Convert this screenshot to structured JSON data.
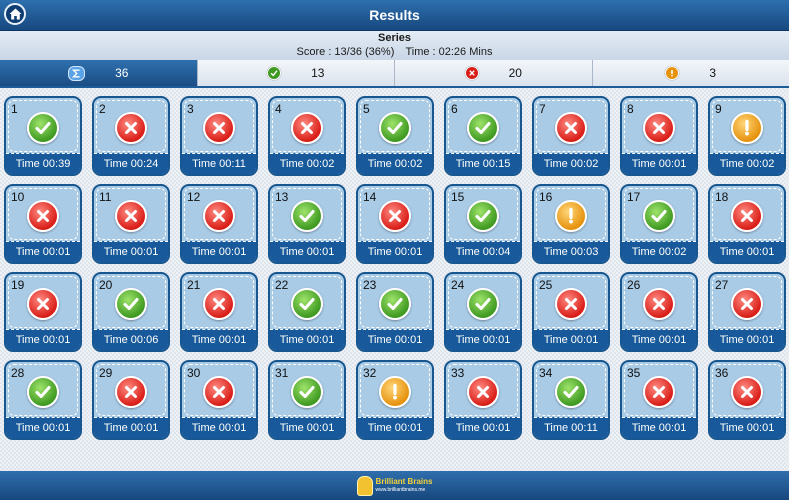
{
  "header": {
    "title": "Results"
  },
  "summary": {
    "series_label": "Series",
    "score": "Score : 13/36 (36%)",
    "time": "Time : 02:26 Mins"
  },
  "tabs": [
    {
      "icon": "sum-icon",
      "count": "36"
    },
    {
      "icon": "check-icon",
      "count": "13"
    },
    {
      "icon": "cross-icon",
      "count": "20"
    },
    {
      "icon": "exclamation-icon",
      "count": "3"
    }
  ],
  "questions": [
    {
      "num": "1",
      "status": "correct",
      "time": "Time 00:39"
    },
    {
      "num": "2",
      "status": "wrong",
      "time": "Time 00:24"
    },
    {
      "num": "3",
      "status": "wrong",
      "time": "Time 00:11"
    },
    {
      "num": "4",
      "status": "wrong",
      "time": "Time 00:02"
    },
    {
      "num": "5",
      "status": "correct",
      "time": "Time 00:02"
    },
    {
      "num": "6",
      "status": "correct",
      "time": "Time 00:15"
    },
    {
      "num": "7",
      "status": "wrong",
      "time": "Time 00:02"
    },
    {
      "num": "8",
      "status": "wrong",
      "time": "Time 00:01"
    },
    {
      "num": "9",
      "status": "skipped",
      "time": "Time 00:02"
    },
    {
      "num": "10",
      "status": "wrong",
      "time": "Time 00:01"
    },
    {
      "num": "11",
      "status": "wrong",
      "time": "Time 00:01"
    },
    {
      "num": "12",
      "status": "wrong",
      "time": "Time 00:01"
    },
    {
      "num": "13",
      "status": "correct",
      "time": "Time 00:01"
    },
    {
      "num": "14",
      "status": "wrong",
      "time": "Time 00:01"
    },
    {
      "num": "15",
      "status": "correct",
      "time": "Time 00:04"
    },
    {
      "num": "16",
      "status": "skipped",
      "time": "Time 00:03"
    },
    {
      "num": "17",
      "status": "correct",
      "time": "Time 00:02"
    },
    {
      "num": "18",
      "status": "wrong",
      "time": "Time 00:01"
    },
    {
      "num": "19",
      "status": "wrong",
      "time": "Time 00:01"
    },
    {
      "num": "20",
      "status": "correct",
      "time": "Time 00:06"
    },
    {
      "num": "21",
      "status": "wrong",
      "time": "Time 00:01"
    },
    {
      "num": "22",
      "status": "correct",
      "time": "Time 00:01"
    },
    {
      "num": "23",
      "status": "correct",
      "time": "Time 00:01"
    },
    {
      "num": "24",
      "status": "correct",
      "time": "Time 00:01"
    },
    {
      "num": "25",
      "status": "wrong",
      "time": "Time 00:01"
    },
    {
      "num": "26",
      "status": "wrong",
      "time": "Time 00:01"
    },
    {
      "num": "27",
      "status": "wrong",
      "time": "Time 00:01"
    },
    {
      "num": "28",
      "status": "correct",
      "time": "Time 00:01"
    },
    {
      "num": "29",
      "status": "wrong",
      "time": "Time 00:01"
    },
    {
      "num": "30",
      "status": "wrong",
      "time": "Time 00:01"
    },
    {
      "num": "31",
      "status": "correct",
      "time": "Time 00:01"
    },
    {
      "num": "32",
      "status": "skipped",
      "time": "Time 00:01"
    },
    {
      "num": "33",
      "status": "wrong",
      "time": "Time 00:01"
    },
    {
      "num": "34",
      "status": "correct",
      "time": "Time 00:11"
    },
    {
      "num": "35",
      "status": "wrong",
      "time": "Time 00:01"
    },
    {
      "num": "36",
      "status": "wrong",
      "time": "Time 00:01"
    }
  ],
  "footer": {
    "logo_name": "Brilliant Brains",
    "logo_url": "www.brilliantbrains.me"
  },
  "colors": {
    "header_blue": "#1d5d9a",
    "card_bg": "#a9cbe6",
    "correct": "#3f9a21",
    "wrong": "#d91e18",
    "skipped": "#e6920d"
  }
}
